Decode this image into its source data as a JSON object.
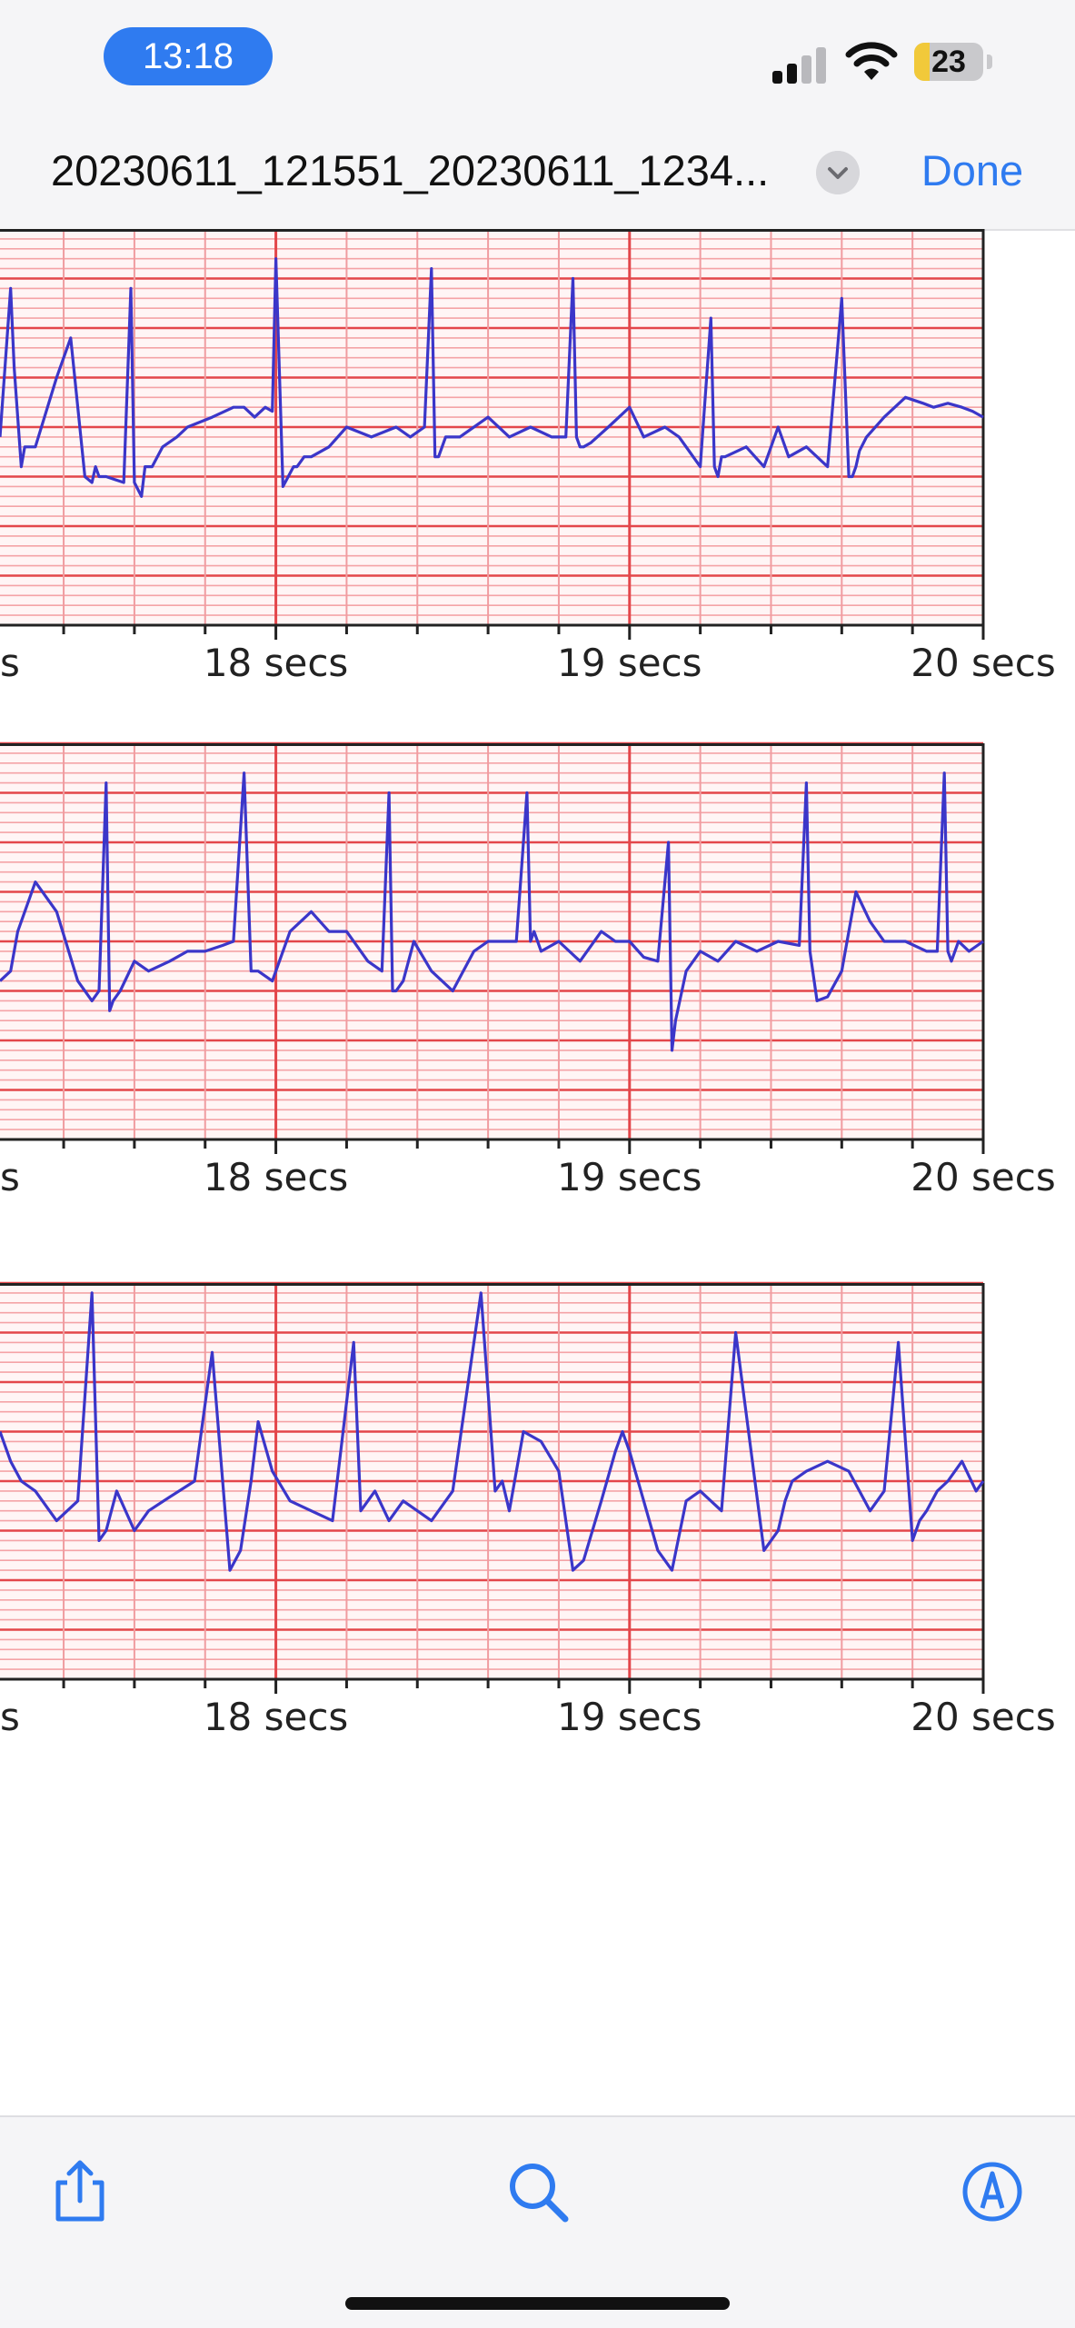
{
  "status_bar": {
    "time": "13:18",
    "battery_level": "23",
    "battery_fraction": 0.23,
    "signal_bars_active": 2,
    "signal_bars_total": 4,
    "icons": [
      "cellular-signal-icon",
      "wifi-icon",
      "battery-icon"
    ],
    "time_pill_color": "#2f7bf0",
    "battery_color": "#f1c93a"
  },
  "nav": {
    "title": "20230611_121551_20230611_1234...",
    "done_label": "Done",
    "menu_icon": "chevron-down-icon",
    "accent_color": "#2f7bf0"
  },
  "toolbar": {
    "share_icon": "share-icon",
    "search_icon": "search-icon",
    "markup_icon": "markup-icon",
    "icon_color": "#2f7bf0"
  },
  "chart_data": [
    {
      "type": "line",
      "xlabel": "",
      "ylabel": "",
      "x_tick_labels": [
        "s",
        "18 secs",
        "19 secs",
        "20 secs"
      ],
      "x_ticks": [
        17,
        18,
        19,
        20
      ],
      "xlim": [
        17.22,
        20
      ],
      "ylim": [
        -1,
        1
      ],
      "grid": true,
      "grid_color": "#e3464a",
      "line_color": "#3b36c9",
      "series": [
        {
          "x": [
            17.22,
            17.25,
            17.26,
            17.28,
            17.29,
            17.32,
            17.38,
            17.42,
            17.46,
            17.48,
            17.49,
            17.5,
            17.52,
            17.57,
            17.59,
            17.6,
            17.62,
            17.63,
            17.65,
            17.68,
            17.72,
            17.75,
            17.82,
            17.88,
            17.91,
            17.94,
            17.97,
            17.99,
            18.0,
            18.02,
            18.05,
            18.06,
            18.08,
            18.1,
            18.15,
            18.2,
            18.27,
            18.34,
            18.38,
            18.42,
            18.44,
            18.45,
            18.46,
            18.47,
            18.48,
            18.52,
            18.6,
            18.66,
            18.72,
            18.78,
            18.82,
            18.84,
            18.85,
            18.86,
            18.87,
            18.89,
            18.94,
            19.0,
            19.04,
            19.1,
            19.14,
            19.2,
            19.23,
            19.24,
            19.25,
            19.26,
            19.27,
            19.33,
            19.38,
            19.42,
            19.45,
            19.5,
            19.56,
            19.6,
            19.62,
            19.63,
            19.64,
            19.65,
            19.67,
            19.72,
            19.78,
            19.83,
            19.86,
            19.9,
            19.94,
            19.97,
            20.0
          ],
          "y": [
            -0.05,
            0.7,
            0.3,
            -0.2,
            -0.1,
            -0.1,
            0.25,
            0.45,
            -0.25,
            -0.28,
            -0.2,
            -0.25,
            -0.25,
            -0.28,
            0.7,
            -0.28,
            -0.35,
            -0.2,
            -0.2,
            -0.1,
            -0.05,
            0.0,
            0.05,
            0.1,
            0.1,
            0.05,
            0.1,
            0.08,
            0.85,
            -0.3,
            -0.2,
            -0.2,
            -0.15,
            -0.15,
            -0.1,
            0.0,
            -0.05,
            0.0,
            -0.05,
            0.0,
            0.8,
            -0.15,
            -0.15,
            -0.1,
            -0.05,
            -0.05,
            0.05,
            -0.05,
            0.0,
            -0.05,
            -0.05,
            0.75,
            -0.05,
            -0.1,
            -0.1,
            -0.08,
            0.0,
            0.1,
            -0.05,
            0.0,
            -0.05,
            -0.2,
            0.55,
            -0.2,
            -0.25,
            -0.15,
            -0.15,
            -0.1,
            -0.2,
            0.0,
            -0.15,
            -0.1,
            -0.2,
            0.65,
            -0.25,
            -0.25,
            -0.2,
            -0.12,
            -0.05,
            0.05,
            0.15,
            0.12,
            0.1,
            0.12,
            0.1,
            0.08,
            0.05
          ]
        }
      ]
    },
    {
      "type": "line",
      "xlabel": "",
      "ylabel": "",
      "x_tick_labels": [
        "s",
        "18 secs",
        "19 secs",
        "20 secs"
      ],
      "x_ticks": [
        17,
        18,
        19,
        20
      ],
      "xlim": [
        17.22,
        20
      ],
      "ylim": [
        -1,
        1
      ],
      "grid": true,
      "grid_color": "#e3464a",
      "line_color": "#3b36c9",
      "series": [
        {
          "x": [
            17.22,
            17.25,
            17.27,
            17.32,
            17.38,
            17.44,
            17.48,
            17.5,
            17.52,
            17.53,
            17.54,
            17.56,
            17.6,
            17.64,
            17.7,
            17.75,
            17.8,
            17.85,
            17.88,
            17.91,
            17.93,
            17.95,
            17.99,
            18.04,
            18.1,
            18.15,
            18.2,
            18.26,
            18.3,
            18.32,
            18.33,
            18.34,
            18.36,
            18.39,
            18.44,
            18.5,
            18.56,
            18.6,
            18.64,
            18.68,
            18.71,
            18.72,
            18.73,
            18.75,
            18.8,
            18.86,
            18.92,
            18.96,
            19.0,
            19.04,
            19.08,
            19.11,
            19.12,
            19.13,
            19.16,
            19.2,
            19.25,
            19.3,
            19.36,
            19.42,
            19.48,
            19.5,
            19.51,
            19.53,
            19.56,
            19.6,
            19.64,
            19.68,
            19.72,
            19.78,
            19.84,
            19.87,
            19.89,
            19.9,
            19.91,
            19.93,
            19.96,
            20.0
          ],
          "y": [
            -0.2,
            -0.15,
            0.05,
            0.3,
            0.15,
            -0.2,
            -0.3,
            -0.25,
            0.8,
            -0.35,
            -0.3,
            -0.25,
            -0.1,
            -0.15,
            -0.1,
            -0.05,
            -0.05,
            -0.02,
            0.0,
            0.85,
            -0.15,
            -0.15,
            -0.2,
            0.05,
            0.15,
            0.05,
            0.05,
            -0.1,
            -0.15,
            0.75,
            -0.25,
            -0.25,
            -0.2,
            0.0,
            -0.15,
            -0.25,
            -0.05,
            0.0,
            0.0,
            0.0,
            0.75,
            0.0,
            0.05,
            -0.05,
            0.0,
            -0.1,
            0.05,
            0.0,
            0.0,
            -0.08,
            -0.1,
            0.5,
            -0.55,
            -0.4,
            -0.15,
            -0.05,
            -0.1,
            0.0,
            -0.05,
            0.0,
            -0.02,
            0.8,
            -0.05,
            -0.3,
            -0.28,
            -0.15,
            0.25,
            0.1,
            0.0,
            0.0,
            -0.05,
            -0.05,
            0.85,
            -0.05,
            -0.1,
            0.0,
            -0.05,
            0.0
          ]
        }
      ]
    },
    {
      "type": "line",
      "xlabel": "",
      "ylabel": "",
      "x_tick_labels": [
        "s",
        "18 secs",
        "19 secs",
        "20 secs"
      ],
      "x_ticks": [
        17,
        18,
        19,
        20
      ],
      "xlim": [
        17.22,
        20
      ],
      "ylim": [
        -1,
        1
      ],
      "grid": true,
      "grid_color": "#e3464a",
      "line_color": "#3b36c9",
      "series": [
        {
          "x": [
            17.22,
            17.25,
            17.28,
            17.32,
            17.38,
            17.44,
            17.48,
            17.5,
            17.52,
            17.55,
            17.6,
            17.64,
            17.7,
            17.77,
            17.82,
            17.87,
            17.9,
            17.93,
            17.95,
            17.99,
            18.04,
            18.1,
            18.16,
            18.22,
            18.24,
            18.26,
            18.28,
            18.32,
            18.36,
            18.4,
            18.44,
            18.5,
            18.58,
            18.62,
            18.64,
            18.66,
            18.7,
            18.75,
            18.8,
            18.84,
            18.87,
            18.92,
            18.96,
            18.98,
            19.0,
            19.04,
            19.08,
            19.12,
            19.16,
            19.2,
            19.26,
            19.3,
            19.38,
            19.42,
            19.44,
            19.46,
            19.5,
            19.56,
            19.62,
            19.68,
            19.72,
            19.76,
            19.8,
            19.82,
            19.84,
            19.87,
            19.9,
            19.94,
            19.98,
            20.0
          ],
          "y": [
            0.25,
            0.1,
            0.0,
            -0.05,
            -0.2,
            -0.1,
            0.95,
            -0.3,
            -0.25,
            -0.05,
            -0.25,
            -0.15,
            -0.08,
            0.0,
            0.65,
            -0.45,
            -0.35,
            0.0,
            0.3,
            0.05,
            -0.1,
            -0.15,
            -0.2,
            0.7,
            -0.15,
            -0.1,
            -0.05,
            -0.2,
            -0.1,
            -0.15,
            -0.2,
            -0.05,
            0.95,
            -0.05,
            0.0,
            -0.15,
            0.25,
            0.2,
            0.05,
            -0.45,
            -0.4,
            -0.1,
            0.15,
            0.25,
            0.15,
            -0.1,
            -0.35,
            -0.45,
            -0.1,
            -0.05,
            -0.15,
            0.75,
            -0.35,
            -0.25,
            -0.1,
            0.0,
            0.05,
            0.1,
            0.05,
            -0.15,
            -0.05,
            0.7,
            -0.3,
            -0.2,
            -0.15,
            -0.05,
            0.0,
            0.1,
            -0.05,
            0.0
          ]
        }
      ]
    }
  ]
}
